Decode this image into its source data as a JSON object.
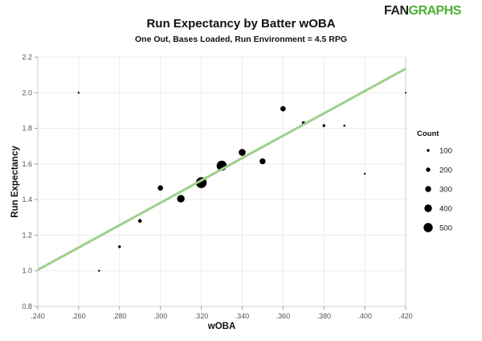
{
  "logo": {
    "text_left": "FAN",
    "text_right": "GRAPHS"
  },
  "chart_data": {
    "type": "scatter",
    "title": "Run Expectancy by Batter wOBA",
    "subtitle": "One Out, Bases Loaded, Run Environment = 4.5 RPG",
    "xlabel": "wOBA",
    "ylabel": "Run Expectancy",
    "xlim": [
      0.24,
      0.42
    ],
    "ylim": [
      0.8,
      2.2
    ],
    "x_ticks": [
      ".240",
      ".260",
      ".280",
      ".300",
      ".320",
      ".340",
      ".360",
      ".380",
      ".400",
      ".420"
    ],
    "y_ticks": [
      "0.8",
      "1.0",
      "1.2",
      "1.4",
      "1.6",
      "1.8",
      "2.0",
      "2.2"
    ],
    "grid": true,
    "points": [
      {
        "x": 0.26,
        "y": 2.0,
        "count": 50
      },
      {
        "x": 0.27,
        "y": 1.0,
        "count": 50
      },
      {
        "x": 0.28,
        "y": 1.135,
        "count": 100
      },
      {
        "x": 0.29,
        "y": 1.28,
        "count": 160
      },
      {
        "x": 0.3,
        "y": 1.465,
        "count": 260
      },
      {
        "x": 0.31,
        "y": 1.405,
        "count": 400
      },
      {
        "x": 0.32,
        "y": 1.495,
        "count": 600
      },
      {
        "x": 0.33,
        "y": 1.59,
        "count": 560
      },
      {
        "x": 0.34,
        "y": 1.665,
        "count": 360
      },
      {
        "x": 0.35,
        "y": 1.615,
        "count": 300
      },
      {
        "x": 0.36,
        "y": 1.91,
        "count": 260
      },
      {
        "x": 0.37,
        "y": 1.83,
        "count": 130
      },
      {
        "x": 0.38,
        "y": 1.815,
        "count": 100
      },
      {
        "x": 0.39,
        "y": 1.815,
        "count": 60
      },
      {
        "x": 0.4,
        "y": 1.545,
        "count": 50
      },
      {
        "x": 0.42,
        "y": 2.0,
        "count": 30
      }
    ],
    "trendline": {
      "x": [
        0.24,
        0.42
      ],
      "y": [
        1.005,
        2.135
      ],
      "color": "#9dd08a"
    },
    "point_color": "#000000",
    "legend": {
      "title": "Count",
      "placement": "right",
      "entries": [
        "100",
        "200",
        "300",
        "400",
        "500"
      ],
      "values": [
        100,
        200,
        300,
        400,
        500
      ]
    }
  }
}
